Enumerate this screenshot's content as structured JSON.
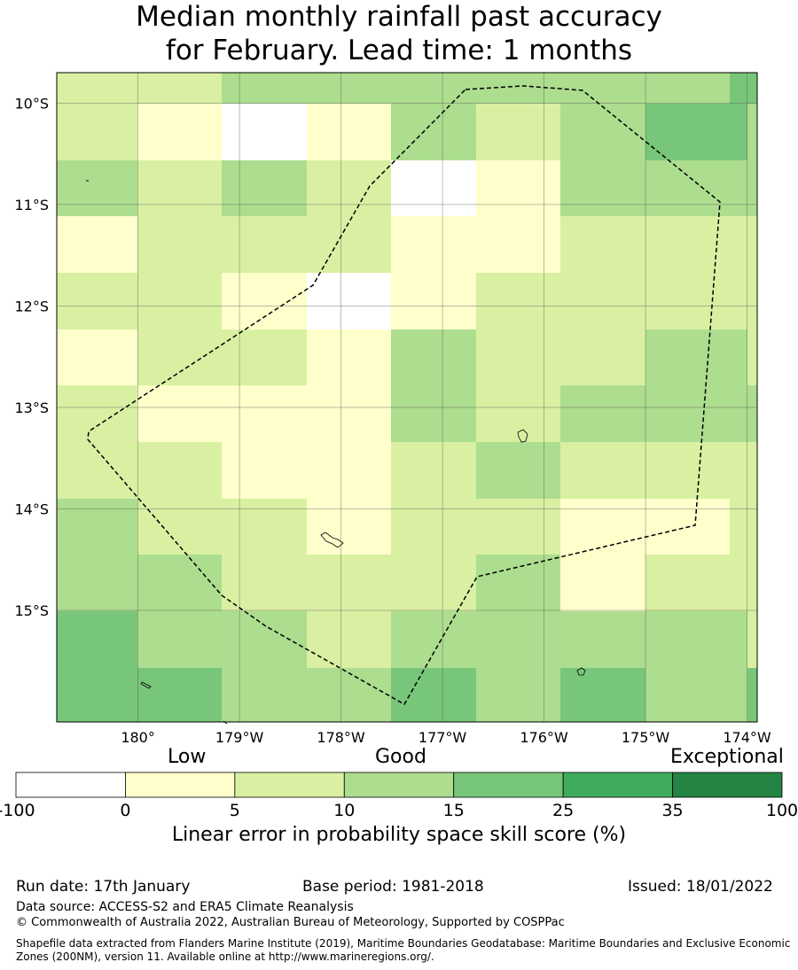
{
  "title_line1": "Median monthly rainfall past accuracy",
  "title_line2": "for February. Lead time: 1 months",
  "map": {
    "lon_range": [
      -180.8,
      -173.9
    ],
    "lat_range": [
      -16.1,
      -9.7
    ],
    "lat_ticks": [
      "10°S",
      "11°S",
      "12°S",
      "13°S",
      "14°S",
      "15°S"
    ],
    "lon_ticks": [
      "180°",
      "179°W",
      "178°W",
      "177°W",
      "176°W",
      "175°W",
      "174°W"
    ],
    "grid_lines": true,
    "level_colors": {
      "0": "#ffffff",
      "1": "#ffffcc",
      "2": "#d9f0a3",
      "3": "#addd8e",
      "4": "#78c679",
      "5": "#41ab5d",
      "6": "#238443"
    },
    "cell_rows": [
      [
        2,
        2,
        3,
        3,
        3,
        3,
        3,
        3,
        4,
        4
      ],
      [
        2,
        1,
        0,
        1,
        3,
        2,
        3,
        4,
        4,
        3
      ],
      [
        3,
        2,
        3,
        2,
        0,
        1,
        3,
        3,
        3,
        3
      ],
      [
        1,
        2,
        2,
        2,
        1,
        1,
        2,
        2,
        2,
        2
      ],
      [
        2,
        2,
        1,
        0,
        1,
        2,
        2,
        2,
        2,
        2
      ],
      [
        1,
        2,
        2,
        1,
        3,
        2,
        2,
        3,
        3,
        2
      ],
      [
        2,
        1,
        1,
        1,
        3,
        2,
        3,
        3,
        3,
        3
      ],
      [
        2,
        2,
        1,
        1,
        2,
        3,
        2,
        2,
        2,
        2
      ],
      [
        3,
        2,
        2,
        1,
        2,
        2,
        1,
        1,
        2,
        2
      ],
      [
        3,
        3,
        2,
        2,
        2,
        3,
        1,
        2,
        2,
        2
      ],
      [
        4,
        3,
        3,
        2,
        3,
        3,
        3,
        3,
        3,
        2
      ],
      [
        4,
        4,
        3,
        3,
        4,
        3,
        4,
        3,
        3,
        4
      ]
    ]
  },
  "legend": {
    "categories": [
      "Low",
      "Good",
      "Exceptional"
    ],
    "ticks": [
      "-100",
      "0",
      "5",
      "10",
      "15",
      "25",
      "35",
      "100"
    ],
    "colors": [
      "#ffffff",
      "#ffffcc",
      "#d9f0a3",
      "#addd8e",
      "#78c679",
      "#41ab5d",
      "#238443"
    ],
    "label": "Linear error in probability space skill score (%)"
  },
  "footer": {
    "run_date": "Run date: 17th January",
    "base_period": "Base period: 1981-2018",
    "issued": "Issued: 18/01/2022",
    "data_source": "Data source: ACCESS-S2 and ERA5 Climate Reanalysis",
    "copyright": "© Commonwealth of Australia 2022, Australian Bureau of Meteorology, Supported by COSPPac",
    "shapefile_note": "Shapefile data extracted from Flanders Marine Institute (2019), Maritime Boundaries Geodatabase: Maritime Boundaries and Exclusive Economic Zones (200NM), version 11. Available online at http://www.marineregions.org/."
  }
}
